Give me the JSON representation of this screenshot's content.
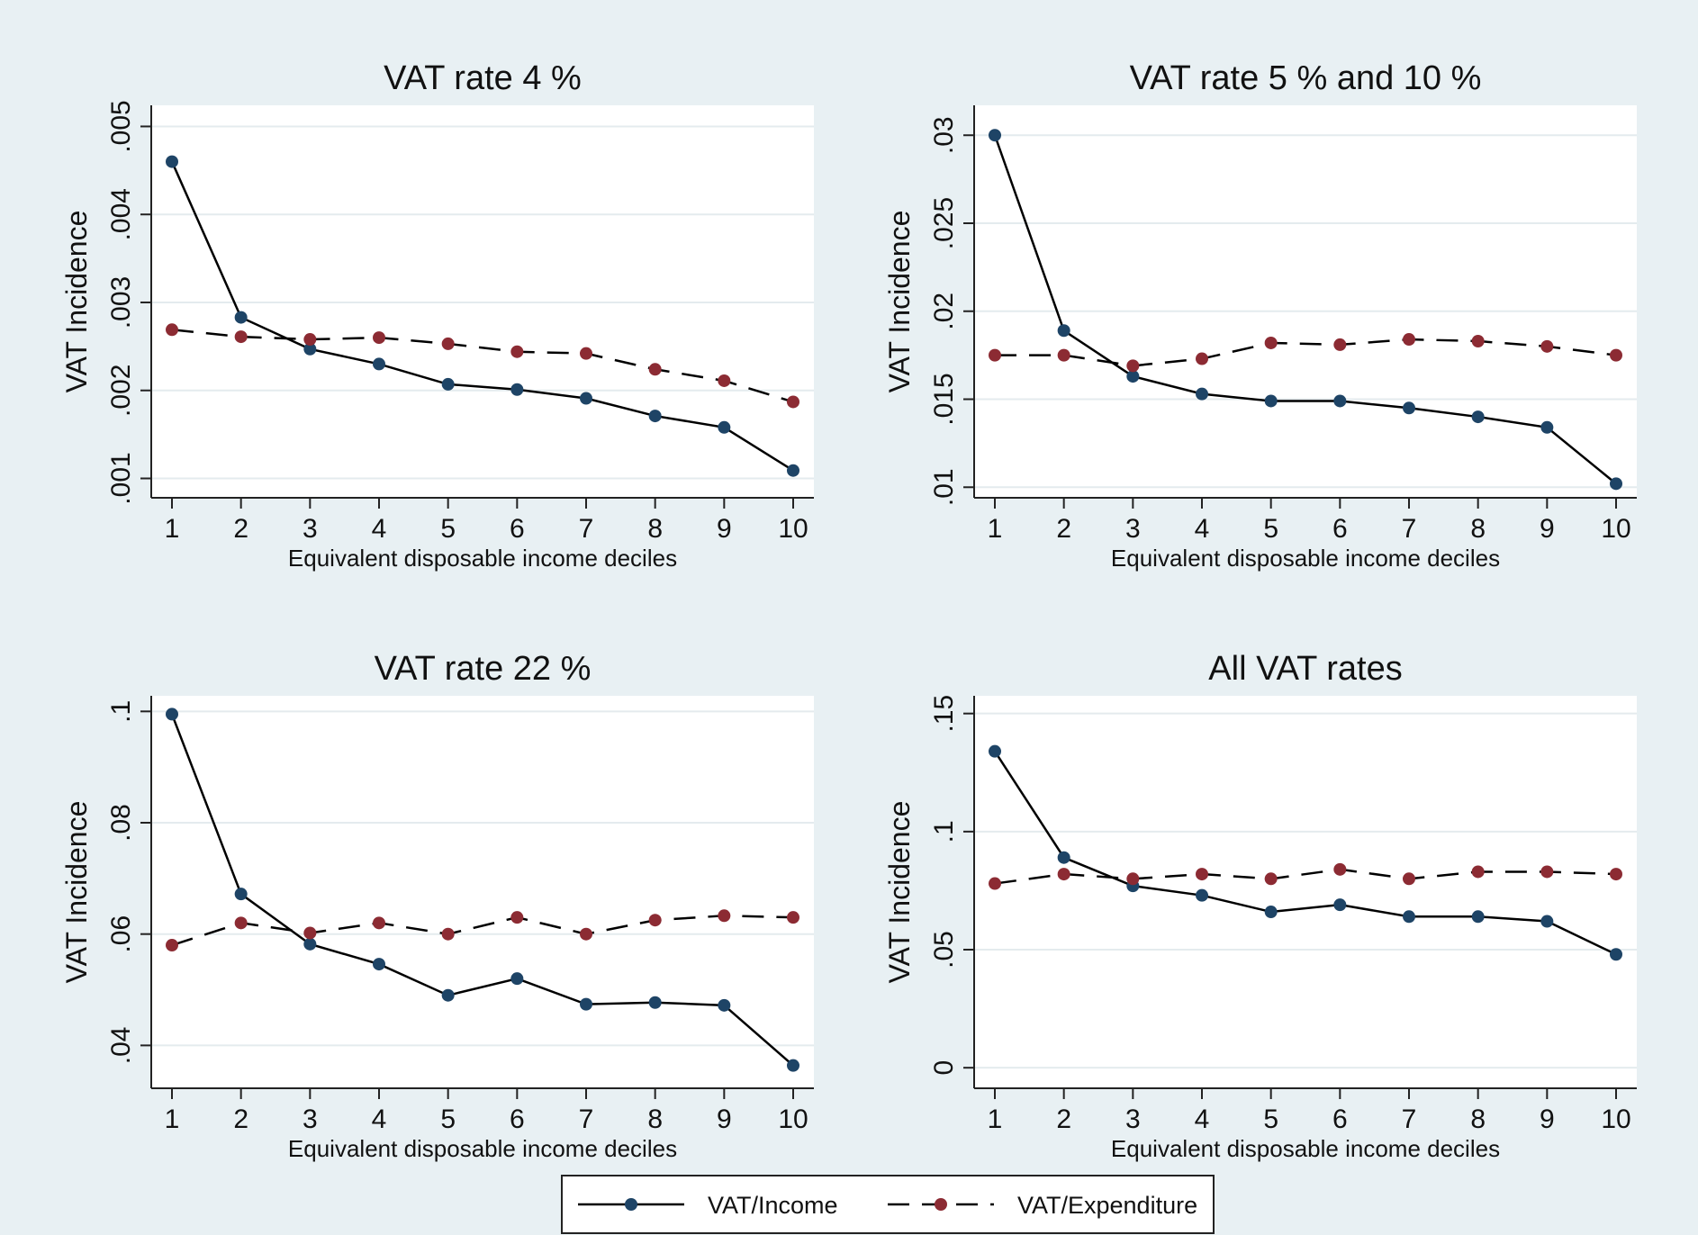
{
  "legend": {
    "income_label": "VAT/Income",
    "expenditure_label": "VAT/Expenditure"
  },
  "colors": {
    "background": "#e8f0f3",
    "plot_area": "#ffffff",
    "income_marker": "#1e4466",
    "expenditure_marker": "#8c2b33",
    "line": "#000000",
    "grid": "#e4ebee"
  },
  "chart_data": [
    {
      "type": "line",
      "title": "VAT rate 4 %",
      "xlabel": "Equivalent disposable income deciles",
      "ylabel": "VAT Incidence",
      "x": [
        1,
        2,
        3,
        4,
        5,
        6,
        7,
        8,
        9,
        10
      ],
      "xticks": [
        "1",
        "2",
        "3",
        "4",
        "5",
        "6",
        "7",
        "8",
        "9",
        "10"
      ],
      "ylim": [
        0.00078,
        0.00524
      ],
      "yticks": [
        0.001,
        0.002,
        0.003,
        0.004,
        0.005
      ],
      "yticklabels": [
        ".001",
        ".002",
        ".003",
        ".004",
        ".005"
      ],
      "grid": true,
      "series": [
        {
          "name": "VAT/Income",
          "style": "solid",
          "values": [
            0.0046,
            0.00283,
            0.00247,
            0.0023,
            0.00207,
            0.00201,
            0.00191,
            0.00171,
            0.00158,
            0.00109
          ]
        },
        {
          "name": "VAT/Expenditure",
          "style": "dashed",
          "values": [
            0.00269,
            0.00261,
            0.00258,
            0.0026,
            0.00253,
            0.00244,
            0.00242,
            0.00224,
            0.00211,
            0.00187
          ]
        }
      ]
    },
    {
      "type": "line",
      "title": "VAT rate 5 % and 10 %",
      "xlabel": "Equivalent disposable income deciles",
      "ylabel": "VAT Incidence",
      "x": [
        1,
        2,
        3,
        4,
        5,
        6,
        7,
        8,
        9,
        10
      ],
      "xticks": [
        "1",
        "2",
        "3",
        "4",
        "5",
        "6",
        "7",
        "8",
        "9",
        "10"
      ],
      "ylim": [
        0.0094,
        0.0317
      ],
      "yticks": [
        0.01,
        0.015,
        0.02,
        0.025,
        0.03
      ],
      "yticklabels": [
        ".01",
        ".015",
        ".02",
        ".025",
        ".03"
      ],
      "grid": true,
      "series": [
        {
          "name": "VAT/Income",
          "style": "solid",
          "values": [
            0.03,
            0.0189,
            0.0163,
            0.0153,
            0.0149,
            0.0149,
            0.0145,
            0.014,
            0.0134,
            0.0102
          ]
        },
        {
          "name": "VAT/Expenditure",
          "style": "dashed",
          "values": [
            0.0175,
            0.0175,
            0.0169,
            0.0173,
            0.0182,
            0.0181,
            0.0184,
            0.0183,
            0.018,
            0.0175
          ]
        }
      ]
    },
    {
      "type": "line",
      "title": "VAT rate 22 %",
      "xlabel": "Equivalent disposable income deciles",
      "ylabel": "VAT Incidence",
      "x": [
        1,
        2,
        3,
        4,
        5,
        6,
        7,
        8,
        9,
        10
      ],
      "xticks": [
        "1",
        "2",
        "3",
        "4",
        "5",
        "6",
        "7",
        "8",
        "9",
        "10"
      ],
      "ylim": [
        0.0323,
        0.1028
      ],
      "yticks": [
        0.04,
        0.06,
        0.08,
        0.1
      ],
      "yticklabels": [
        ".04",
        ".06",
        ".08",
        ".1"
      ],
      "grid": true,
      "series": [
        {
          "name": "VAT/Income",
          "style": "solid",
          "values": [
            0.0995,
            0.0672,
            0.0582,
            0.0546,
            0.049,
            0.052,
            0.0474,
            0.0477,
            0.0472,
            0.0364
          ]
        },
        {
          "name": "VAT/Expenditure",
          "style": "dashed",
          "values": [
            0.058,
            0.062,
            0.0602,
            0.062,
            0.06,
            0.063,
            0.06,
            0.0625,
            0.0633,
            0.063
          ]
        }
      ]
    },
    {
      "type": "line",
      "title": "All VAT rates",
      "xlabel": "Equivalent disposable income deciles",
      "ylabel": "VAT Incidence",
      "x": [
        1,
        2,
        3,
        4,
        5,
        6,
        7,
        8,
        9,
        10
      ],
      "xticks": [
        "1",
        "2",
        "3",
        "4",
        "5",
        "6",
        "7",
        "8",
        "9",
        "10"
      ],
      "ylim": [
        -0.0087,
        0.1575
      ],
      "yticks": [
        0,
        0.05,
        0.1,
        0.15
      ],
      "yticklabels": [
        "0",
        ".05",
        ".1",
        ".15"
      ],
      "grid": true,
      "series": [
        {
          "name": "VAT/Income",
          "style": "solid",
          "values": [
            0.134,
            0.089,
            0.077,
            0.073,
            0.066,
            0.069,
            0.064,
            0.064,
            0.062,
            0.048
          ]
        },
        {
          "name": "VAT/Expenditure",
          "style": "dashed",
          "values": [
            0.078,
            0.082,
            0.08,
            0.082,
            0.08,
            0.084,
            0.08,
            0.083,
            0.083,
            0.082
          ]
        }
      ]
    }
  ]
}
